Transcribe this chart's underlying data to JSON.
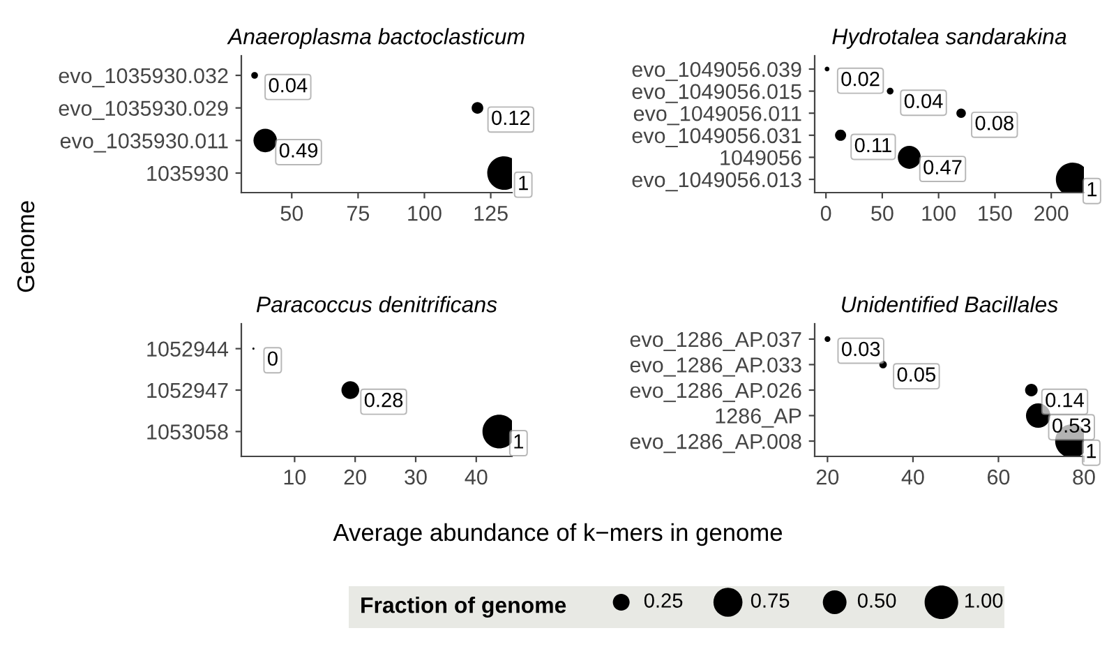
{
  "chart_data": [
    {
      "type": "bubble",
      "orientation": "horizontal",
      "title": "Anaeroplasma bactoclasticum",
      "xlabel": "Average abundance of k−mers in genome",
      "ylabel": "Genome",
      "legend_title": "Fraction of genome",
      "size_legend": [
        0.25,
        0.75,
        {
          "value": 0.5,
          "label": "0.50"
        },
        {
          "value": 1.0,
          "label": "1.00"
        }
      ],
      "categories": [
        "evo_1035930.032",
        "evo_1035930.029",
        "evo_1035930.011",
        "1035930"
      ],
      "values": [
        36,
        120,
        40,
        130
      ],
      "sizes": [
        0.04,
        0.12,
        0.49,
        1
      ],
      "value_labels": [
        "0.04",
        "0.12",
        "0.49",
        "1"
      ],
      "color": "#000000",
      "xlim": [
        31,
        133
      ],
      "xticks": [
        50,
        75,
        100,
        125
      ]
    },
    {
      "type": "bubble",
      "orientation": "horizontal",
      "title": "Hydrotalea sandarakina",
      "categories": [
        "evo_1049056.039",
        "evo_1049056.015",
        "evo_1049056.011",
        "evo_1049056.031",
        "1049056",
        "evo_1049056.013"
      ],
      "values": [
        1,
        57,
        120,
        13,
        74,
        219
      ],
      "sizes": [
        0.02,
        0.04,
        0.08,
        0.11,
        0.47,
        1
      ],
      "value_labels": [
        "0.02",
        "0.04",
        "0.08",
        "0.11",
        "0.47",
        "1"
      ],
      "color": "#000000",
      "xlim": [
        -10,
        229
      ],
      "xticks": [
        0,
        50,
        100,
        150,
        200
      ]
    },
    {
      "type": "bubble",
      "orientation": "horizontal",
      "title": "Paracoccus denitrificans",
      "categories": [
        "1052944",
        "1052947",
        "1053058"
      ],
      "values": [
        3.2,
        19.2,
        43.8
      ],
      "sizes": [
        0.004,
        0.28,
        1
      ],
      "value_labels": [
        "0",
        "0.28",
        "1"
      ],
      "color": "#000000",
      "xlim": [
        1.2,
        45.9
      ],
      "xticks": [
        10,
        20,
        30,
        40
      ]
    },
    {
      "type": "bubble",
      "orientation": "horizontal",
      "title": "Unidentified Bacillales",
      "categories": [
        "evo_1286_AP.037",
        "evo_1286_AP.033",
        "evo_1286_AP.026",
        "1286_AP",
        "evo_1286_AP.008"
      ],
      "values": [
        20,
        33,
        67.7,
        69.3,
        77.2
      ],
      "sizes": [
        0.03,
        0.05,
        0.14,
        0.53,
        1
      ],
      "value_labels": [
        "0.03",
        "0.05",
        "0.14",
        "0.53",
        "1"
      ],
      "color": "#000000",
      "xlim": [
        17,
        80
      ],
      "xticks": [
        20,
        40,
        60,
        80
      ]
    }
  ]
}
